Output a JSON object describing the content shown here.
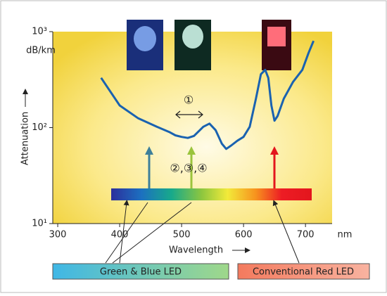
{
  "chart_data": {
    "type": "line",
    "y_axis_unit": "dB/km",
    "y_axis_label": "Attenuation",
    "x_axis_label": "Wavelength",
    "x_axis_unit": "nm",
    "x": [
      370,
      400,
      430,
      460,
      480,
      490,
      500,
      510,
      520,
      535,
      545,
      555,
      565,
      572,
      580,
      590,
      600,
      610,
      620,
      628,
      635,
      640,
      645,
      650,
      655,
      665,
      680,
      695,
      705,
      713
    ],
    "values": [
      330,
      170,
      125,
      102,
      90,
      83,
      80,
      78,
      82,
      102,
      110,
      94,
      68,
      60,
      65,
      73,
      80,
      102,
      200,
      360,
      400,
      330,
      170,
      118,
      132,
      200,
      300,
      400,
      600,
      800
    ],
    "color": "#1a62b0",
    "xlim": [
      292,
      743
    ],
    "xticks": [
      300,
      400,
      500,
      600,
      700
    ],
    "ylim": [
      10,
      1000
    ],
    "ylog": true,
    "yticks": [
      {
        "value": 10,
        "label": "10¹"
      },
      {
        "value": 100,
        "label": "10²"
      },
      {
        "value": 1000,
        "label": "10³"
      }
    ],
    "annotations": [
      "①",
      "②,③,④"
    ],
    "legend": [
      "Green & Blue LED",
      "Conventional Red LED"
    ]
  }
}
